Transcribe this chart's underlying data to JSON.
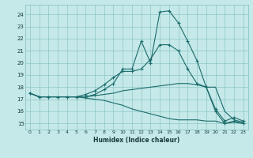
{
  "xlabel": "Humidex (Indice chaleur)",
  "bg_color": "#c5e8e8",
  "grid_color": "#7fbfbf",
  "line_color": "#1a6b6b",
  "xlim": [
    -0.5,
    23.5
  ],
  "ylim": [
    14.5,
    24.8
  ],
  "yticks": [
    15,
    16,
    17,
    18,
    19,
    20,
    21,
    22,
    23,
    24
  ],
  "xticks": [
    0,
    1,
    2,
    3,
    4,
    5,
    6,
    7,
    8,
    9,
    10,
    11,
    12,
    13,
    14,
    15,
    16,
    17,
    18,
    19,
    20,
    21,
    22,
    23
  ],
  "lines": [
    {
      "x": [
        0,
        1,
        2,
        3,
        4,
        5,
        6,
        7,
        8,
        9,
        10,
        11,
        12,
        13,
        14,
        15,
        16,
        17,
        18,
        19,
        20,
        21,
        22,
        23
      ],
      "y": [
        17.5,
        17.2,
        17.2,
        17.2,
        17.2,
        17.2,
        17.2,
        17.4,
        17.8,
        18.3,
        19.5,
        19.5,
        21.8,
        20.0,
        24.2,
        24.3,
        23.3,
        21.8,
        20.2,
        18.0,
        16.2,
        15.2,
        15.5,
        15.2
      ],
      "marker": true
    },
    {
      "x": [
        0,
        1,
        2,
        3,
        4,
        5,
        6,
        7,
        8,
        9,
        10,
        11,
        12,
        13,
        14,
        15,
        16,
        17,
        18,
        19,
        20,
        21,
        22,
        23
      ],
      "y": [
        17.5,
        17.2,
        17.2,
        17.2,
        17.2,
        17.2,
        17.4,
        17.7,
        18.2,
        18.8,
        19.3,
        19.3,
        19.5,
        20.3,
        21.5,
        21.5,
        21.0,
        19.5,
        18.3,
        18.0,
        16.0,
        15.0,
        15.2,
        15.0
      ],
      "marker": true
    },
    {
      "x": [
        0,
        1,
        2,
        3,
        4,
        5,
        6,
        7,
        8,
        9,
        10,
        11,
        12,
        13,
        14,
        15,
        16,
        17,
        18,
        19,
        20,
        21,
        22,
        23
      ],
      "y": [
        17.5,
        17.2,
        17.2,
        17.2,
        17.2,
        17.2,
        17.2,
        17.3,
        17.4,
        17.5,
        17.7,
        17.8,
        17.9,
        18.0,
        18.1,
        18.2,
        18.3,
        18.3,
        18.2,
        18.0,
        18.0,
        16.0,
        15.3,
        15.1
      ],
      "marker": false
    },
    {
      "x": [
        0,
        1,
        2,
        3,
        4,
        5,
        6,
        7,
        8,
        9,
        10,
        11,
        12,
        13,
        14,
        15,
        16,
        17,
        18,
        19,
        20,
        21,
        22,
        23
      ],
      "y": [
        17.5,
        17.2,
        17.2,
        17.2,
        17.2,
        17.2,
        17.1,
        17.0,
        16.9,
        16.7,
        16.5,
        16.2,
        16.0,
        15.8,
        15.6,
        15.4,
        15.3,
        15.3,
        15.3,
        15.2,
        15.2,
        15.0,
        15.1,
        15.0
      ],
      "marker": false
    }
  ]
}
